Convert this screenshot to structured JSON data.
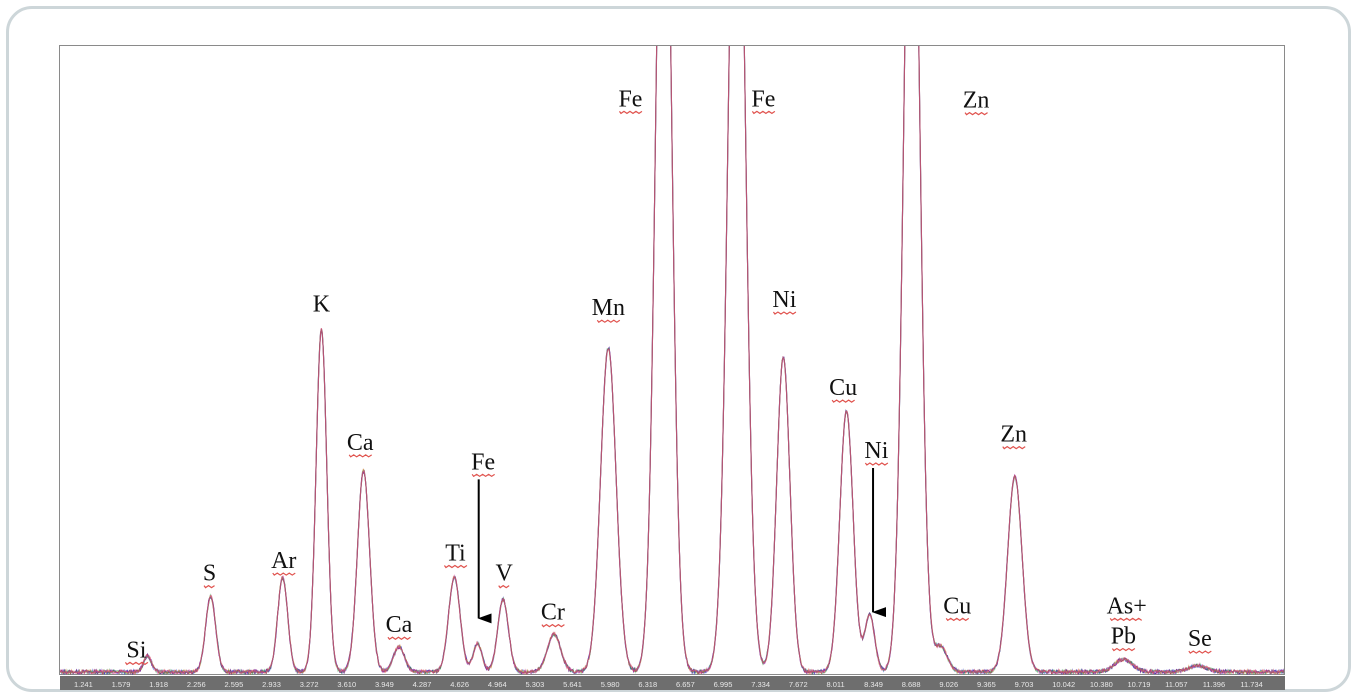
{
  "chart_data": {
    "type": "line",
    "title": "",
    "xlabel": "",
    "ylabel": "",
    "xlim": [
      0.95,
      12.0
    ],
    "ylim": [
      0,
      1000
    ],
    "tick_labels": [
      "1.241",
      "1.579",
      "1.918",
      "2.256",
      "2.595",
      "2.933",
      "3.272",
      "3.610",
      "3.949",
      "4.287",
      "4.626",
      "4.964",
      "5.303",
      "5.641",
      "5.980",
      "6.318",
      "6.657",
      "6.995",
      "7.334",
      "7.672",
      "8.011",
      "8.349",
      "8.688",
      "9.026",
      "9.365",
      "9.703",
      "10.042",
      "10.380",
      "10.719",
      "11.057",
      "11.396",
      "11.734"
    ],
    "baseline": 5,
    "peaks": [
      {
        "x": 1.74,
        "height": 25,
        "width": 0.035
      },
      {
        "x": 2.31,
        "height": 120,
        "width": 0.045
      },
      {
        "x": 2.96,
        "height": 150,
        "width": 0.045
      },
      {
        "x": 3.31,
        "height": 545,
        "width": 0.048
      },
      {
        "x": 3.69,
        "height": 320,
        "width": 0.055
      },
      {
        "x": 4.01,
        "height": 40,
        "width": 0.05
      },
      {
        "x": 4.51,
        "height": 150,
        "width": 0.052
      },
      {
        "x": 4.72,
        "height": 45,
        "width": 0.04
      },
      {
        "x": 4.95,
        "height": 115,
        "width": 0.048
      },
      {
        "x": 5.41,
        "height": 60,
        "width": 0.06
      },
      {
        "x": 5.9,
        "height": 515,
        "width": 0.07
      },
      {
        "x": 6.4,
        "height": 1500,
        "width": 0.07
      },
      {
        "x": 7.06,
        "height": 1500,
        "width": 0.075
      },
      {
        "x": 7.48,
        "height": 500,
        "width": 0.06
      },
      {
        "x": 8.05,
        "height": 415,
        "width": 0.06
      },
      {
        "x": 8.26,
        "height": 90,
        "width": 0.045
      },
      {
        "x": 8.64,
        "height": 1500,
        "width": 0.07
      },
      {
        "x": 8.9,
        "height": 40,
        "width": 0.06
      },
      {
        "x": 9.57,
        "height": 310,
        "width": 0.065
      },
      {
        "x": 10.55,
        "height": 20,
        "width": 0.08
      },
      {
        "x": 11.22,
        "height": 10,
        "width": 0.08
      }
    ],
    "annotations": [
      {
        "text": "Si",
        "x": 1.64,
        "y": 28
      },
      {
        "text": "S",
        "x": 2.3,
        "y": 150
      },
      {
        "text": "Ar",
        "x": 2.97,
        "y": 170
      },
      {
        "text": "K",
        "x": 3.31,
        "y": 578,
        "no_underline": true
      },
      {
        "text": "Ca",
        "x": 3.66,
        "y": 358
      },
      {
        "text": "Ca",
        "x": 4.01,
        "y": 68
      },
      {
        "text": "Ti",
        "x": 4.52,
        "y": 182
      },
      {
        "text": "Fe",
        "x": 4.77,
        "y": 327,
        "arrow_to": {
          "x": 4.73,
          "y": 90
        }
      },
      {
        "text": "V",
        "x": 4.96,
        "y": 150
      },
      {
        "text": "Cr",
        "x": 5.4,
        "y": 88
      },
      {
        "text": "Mn",
        "x": 5.9,
        "y": 572
      },
      {
        "text": "Fe",
        "x": 6.1,
        "y": 904
      },
      {
        "text": "Fe",
        "x": 7.3,
        "y": 904
      },
      {
        "text": "Ni",
        "x": 7.49,
        "y": 585
      },
      {
        "text": "Cu",
        "x": 8.02,
        "y": 445
      },
      {
        "text": "Ni",
        "x": 8.32,
        "y": 345,
        "arrow_to": {
          "x": 8.29,
          "y": 100
        }
      },
      {
        "text": "Zn",
        "x": 9.22,
        "y": 902
      },
      {
        "text": "Cu",
        "x": 9.05,
        "y": 98
      },
      {
        "text": "Zn",
        "x": 9.56,
        "y": 371
      },
      {
        "text": "As+",
        "x": 10.58,
        "y": 98
      },
      {
        "text": "Pb",
        "x": 10.55,
        "y": 50
      },
      {
        "text": "Se",
        "x": 11.24,
        "y": 46
      }
    ],
    "series_colors": [
      "#7030a0",
      "#3c5bd8",
      "#2e9e4a",
      "#e0702a",
      "#d43b8f"
    ]
  }
}
